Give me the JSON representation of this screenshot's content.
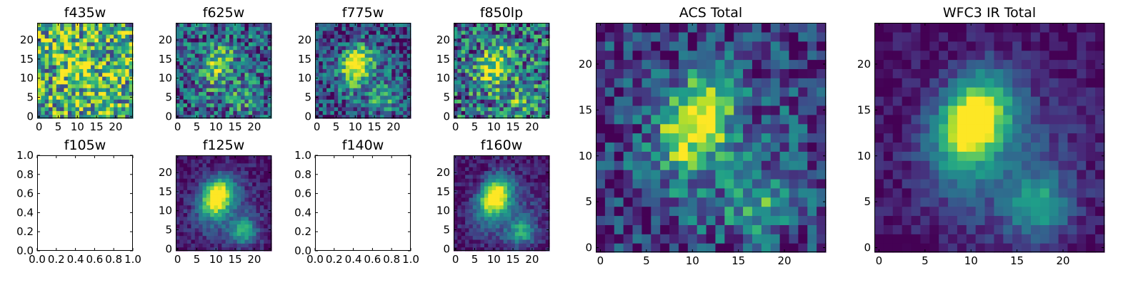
{
  "chart_data": [
    {
      "type": "heatmap",
      "title": "f435w",
      "kind": "image",
      "seed": 11,
      "contrast": 0.25,
      "offset": 0.6,
      "noise": 0.45,
      "xlim": [
        0,
        24
      ],
      "ylim": [
        0,
        24
      ],
      "xticks": [
        "0",
        "5",
        "10",
        "15",
        "20"
      ],
      "yticks": [
        "0",
        "5",
        "10",
        "15",
        "20"
      ],
      "colormap": "viridis"
    },
    {
      "type": "heatmap",
      "title": "f625w",
      "kind": "image",
      "seed": 23,
      "contrast": 0.45,
      "offset": 0.3,
      "noise": 0.35,
      "xlim": [
        0,
        24
      ],
      "ylim": [
        0,
        24
      ],
      "xticks": [
        "0",
        "5",
        "10",
        "15",
        "20"
      ],
      "yticks": [
        "0",
        "5",
        "10",
        "15",
        "20"
      ],
      "colormap": "viridis"
    },
    {
      "type": "heatmap",
      "title": "f775w",
      "kind": "image",
      "seed": 37,
      "contrast": 0.75,
      "offset": 0.2,
      "noise": 0.3,
      "xlim": [
        0,
        24
      ],
      "ylim": [
        0,
        24
      ],
      "xticks": [
        "0",
        "5",
        "10",
        "15",
        "20"
      ],
      "yticks": [
        "0",
        "5",
        "10",
        "15",
        "20"
      ],
      "colormap": "viridis"
    },
    {
      "type": "heatmap",
      "title": "f850lp",
      "kind": "image",
      "seed": 41,
      "contrast": 0.5,
      "offset": 0.35,
      "noise": 0.4,
      "xlim": [
        0,
        24
      ],
      "ylim": [
        0,
        24
      ],
      "xticks": [
        "0",
        "5",
        "10",
        "15",
        "20"
      ],
      "yticks": [
        "0",
        "5",
        "10",
        "15",
        "20"
      ],
      "colormap": "viridis"
    },
    {
      "type": "heatmap",
      "title": "f105w",
      "kind": "empty",
      "xlim": [
        0,
        1
      ],
      "ylim": [
        0,
        1
      ],
      "xticks": [
        "0.0",
        "0.2",
        "0.4",
        "0.6",
        "0.8",
        "1.0"
      ],
      "yticks": [
        "0.0",
        "0.2",
        "0.4",
        "0.6",
        "0.8",
        "1.0"
      ]
    },
    {
      "type": "heatmap",
      "title": "f125w",
      "kind": "image",
      "seed": 53,
      "contrast": 1.0,
      "offset": 0.05,
      "noise": 0.12,
      "xlim": [
        0,
        24
      ],
      "ylim": [
        0,
        24
      ],
      "xticks": [
        "0",
        "5",
        "10",
        "15",
        "20"
      ],
      "yticks": [
        "0",
        "5",
        "10",
        "15",
        "20"
      ],
      "colormap": "viridis"
    },
    {
      "type": "heatmap",
      "title": "f140w",
      "kind": "empty",
      "xlim": [
        0,
        1
      ],
      "ylim": [
        0,
        1
      ],
      "xticks": [
        "0.0",
        "0.2",
        "0.4",
        "0.6",
        "0.8",
        "1.0"
      ],
      "yticks": [
        "0.0",
        "0.2",
        "0.4",
        "0.6",
        "0.8",
        "1.0"
      ]
    },
    {
      "type": "heatmap",
      "title": "f160w",
      "kind": "image",
      "seed": 67,
      "contrast": 1.0,
      "offset": 0.05,
      "noise": 0.12,
      "xlim": [
        0,
        24
      ],
      "ylim": [
        0,
        24
      ],
      "xticks": [
        "0",
        "5",
        "10",
        "15",
        "20"
      ],
      "yticks": [
        "0",
        "5",
        "10",
        "15",
        "20"
      ],
      "colormap": "viridis"
    },
    {
      "type": "heatmap",
      "title": "ACS Total",
      "kind": "image",
      "seed": 79,
      "contrast": 0.8,
      "offset": 0.15,
      "noise": 0.28,
      "xlim": [
        0,
        24
      ],
      "ylim": [
        0,
        24
      ],
      "xticks": [
        "0",
        "5",
        "10",
        "15",
        "20"
      ],
      "yticks": [
        "0",
        "5",
        "10",
        "15",
        "20"
      ],
      "colormap": "viridis"
    },
    {
      "type": "heatmap",
      "title": "WFC3 IR Total",
      "kind": "image",
      "seed": 97,
      "contrast": 1.0,
      "offset": 0.03,
      "noise": 0.1,
      "xlim": [
        0,
        24
      ],
      "ylim": [
        0,
        24
      ],
      "xticks": [
        "0",
        "5",
        "10",
        "15",
        "20"
      ],
      "yticks": [
        "0",
        "5",
        "10",
        "15",
        "20"
      ],
      "colormap": "viridis"
    }
  ]
}
